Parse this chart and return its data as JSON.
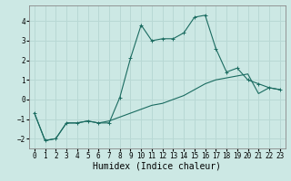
{
  "xlabel": "Humidex (Indice chaleur)",
  "bg_color": "#cce8e4",
  "grid_color": "#b8d8d4",
  "line_color": "#1a6b60",
  "x_line1": [
    0,
    1,
    2,
    3,
    4,
    5,
    6,
    7,
    8,
    9,
    10,
    11,
    12,
    13,
    14,
    15,
    16,
    17,
    18,
    19,
    20,
    21,
    22,
    23
  ],
  "y_line1": [
    -0.7,
    -2.1,
    -2.0,
    -1.2,
    -1.2,
    -1.1,
    -1.2,
    -1.2,
    0.1,
    2.1,
    3.8,
    3.0,
    3.1,
    3.1,
    3.4,
    4.2,
    4.3,
    2.6,
    1.4,
    1.6,
    1.0,
    0.8,
    0.6,
    0.5
  ],
  "x_line2": [
    0,
    1,
    2,
    3,
    4,
    5,
    6,
    7,
    8,
    9,
    10,
    11,
    12,
    13,
    14,
    15,
    16,
    17,
    18,
    19,
    20,
    21,
    22,
    23
  ],
  "y_line2": [
    -0.7,
    -2.1,
    -2.0,
    -1.2,
    -1.2,
    -1.1,
    -1.2,
    -1.1,
    -0.9,
    -0.7,
    -0.5,
    -0.3,
    -0.2,
    0.0,
    0.2,
    0.5,
    0.8,
    1.0,
    1.1,
    1.2,
    1.3,
    0.3,
    0.6,
    0.5
  ],
  "ylim": [
    -2.5,
    4.8
  ],
  "xlim": [
    -0.5,
    23.5
  ],
  "yticks": [
    -2,
    -1,
    0,
    1,
    2,
    3,
    4
  ],
  "xticks": [
    0,
    1,
    2,
    3,
    4,
    5,
    6,
    7,
    8,
    9,
    10,
    11,
    12,
    13,
    14,
    15,
    16,
    17,
    18,
    19,
    20,
    21,
    22,
    23
  ],
  "tick_fontsize": 5.5,
  "xlabel_fontsize": 7.0,
  "marker": "+"
}
